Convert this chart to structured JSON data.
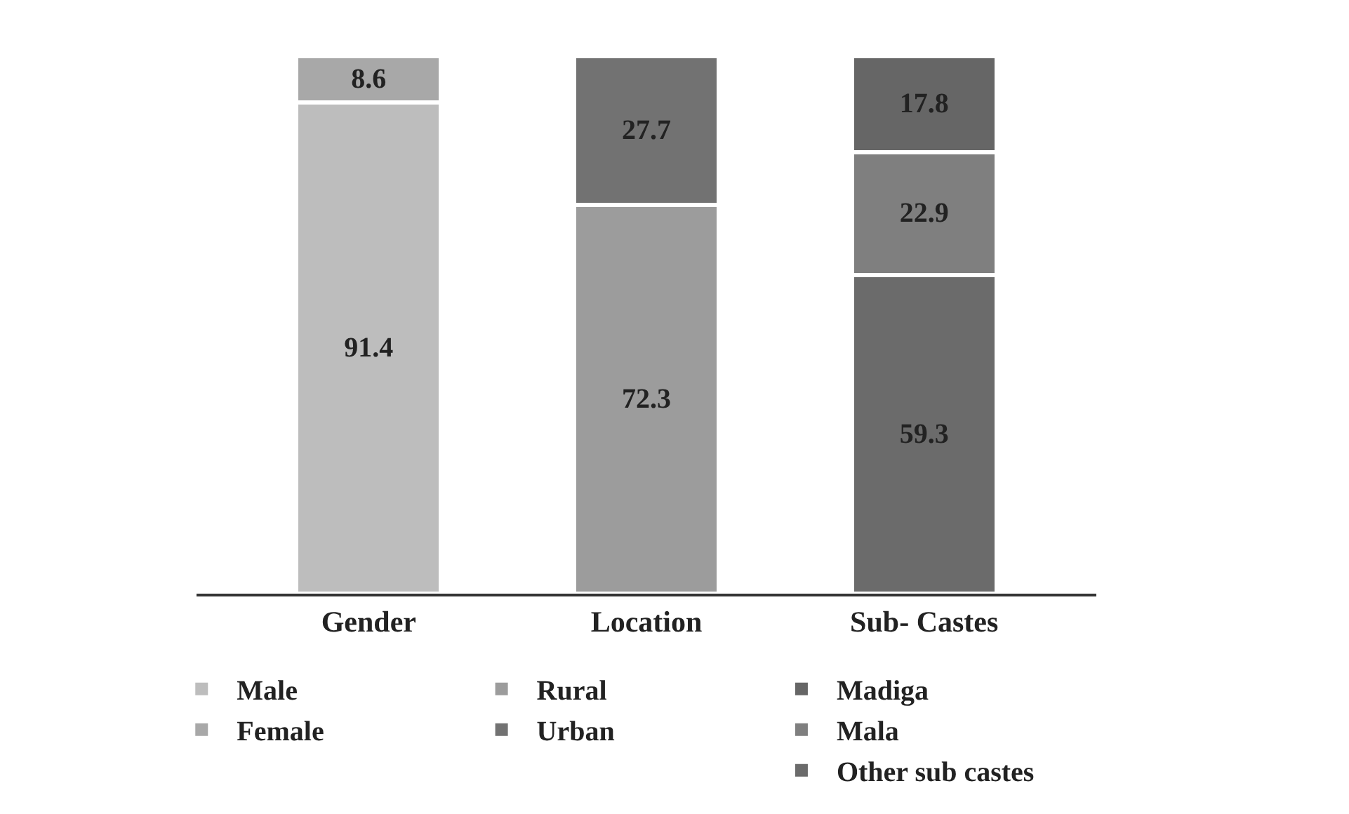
{
  "chart_data": {
    "type": "bar",
    "stacked": true,
    "data_labels": true,
    "legend": "bottom",
    "categories": [
      "Gender",
      "Location",
      "Sub- Castes"
    ],
    "series": [
      {
        "name": "Male",
        "color": "#bdbdbd",
        "values": [
          91.4,
          null,
          null
        ]
      },
      {
        "name": "Female",
        "color": "#a8a8a8",
        "values": [
          8.6,
          null,
          null
        ]
      },
      {
        "name": "Rural",
        "color": "#9c9c9c",
        "values": [
          null,
          72.3,
          null
        ]
      },
      {
        "name": "Urban",
        "color": "#727272",
        "values": [
          null,
          27.7,
          null
        ]
      },
      {
        "name": "Other sub castes",
        "color": "#6b6b6b",
        "values": [
          null,
          null,
          59.3
        ]
      },
      {
        "name": "Mala",
        "color": "#7f7f7f",
        "values": [
          null,
          null,
          22.9
        ]
      },
      {
        "name": "Madiga",
        "color": "#666666",
        "values": [
          null,
          null,
          17.8
        ]
      }
    ]
  }
}
